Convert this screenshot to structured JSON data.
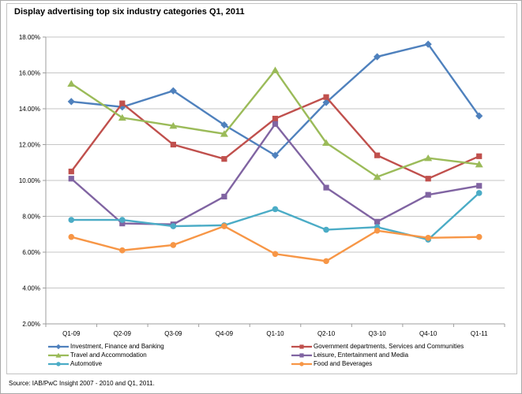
{
  "chart_data": {
    "type": "line",
    "title": "Display advertising top six industry categories Q1, 2011",
    "categories": [
      "Q1-09",
      "Q2-09",
      "Q3-09",
      "Q4-09",
      "Q1-10",
      "Q2-10",
      "Q3-10",
      "Q4-10",
      "Q1-11"
    ],
    "series": [
      {
        "name": "Investment, Finance and Banking",
        "color": "#4F81BD",
        "marker": "diamond",
        "values": [
          14.4,
          14.1,
          15.0,
          13.1,
          11.4,
          14.35,
          16.9,
          17.6,
          13.6
        ]
      },
      {
        "name": "Government departments, Services and Communities",
        "color": "#C0504D",
        "marker": "square",
        "values": [
          10.5,
          14.3,
          12.0,
          11.2,
          13.45,
          14.65,
          11.4,
          10.1,
          11.35
        ]
      },
      {
        "name": "Travel and Accommodation",
        "color": "#9BBB59",
        "marker": "triangle",
        "values": [
          15.4,
          13.5,
          13.05,
          12.6,
          16.15,
          12.1,
          10.2,
          11.25,
          10.9
        ]
      },
      {
        "name": "Leisure, Entertainment and Media",
        "color": "#8064A2",
        "marker": "square",
        "values": [
          10.1,
          7.6,
          7.55,
          9.1,
          13.15,
          9.6,
          7.7,
          9.2,
          9.7
        ]
      },
      {
        "name": "Automotive",
        "color": "#4BACC6",
        "marker": "circle",
        "values": [
          7.8,
          7.8,
          7.45,
          7.5,
          8.4,
          7.25,
          7.4,
          6.7,
          9.3
        ]
      },
      {
        "name": "Food and Beverages",
        "color": "#F79646",
        "marker": "circle",
        "values": [
          6.85,
          6.1,
          6.4,
          7.45,
          5.9,
          5.5,
          7.2,
          6.8,
          6.85
        ]
      }
    ],
    "y_axis": {
      "min": 2,
      "max": 18,
      "step": 2,
      "tick_labels": [
        "2.00%",
        "4.00%",
        "6.00%",
        "8.00%",
        "10.00%",
        "12.00%",
        "14.00%",
        "16.00%",
        "18.00%"
      ]
    },
    "grid": true,
    "legend_position": "bottom",
    "legend_columns": 2,
    "grid_color": "#c6c6c6",
    "axis_color": "#9e9e9e"
  },
  "source": {
    "text": "Source: IAB/PwC Insight 2007 - 2010 and Q1, 2011."
  }
}
